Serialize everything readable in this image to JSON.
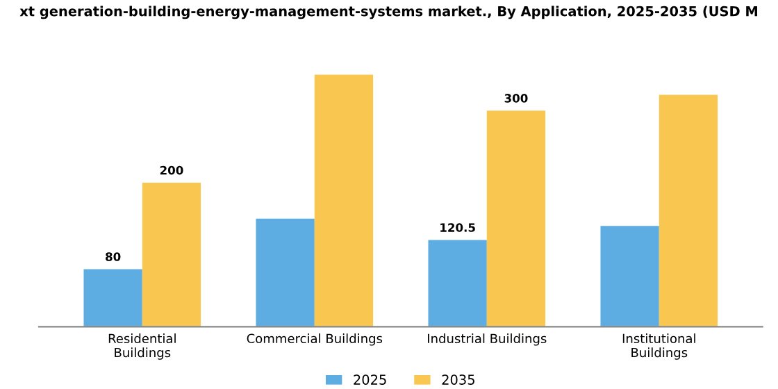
{
  "chart_data": {
    "type": "bar",
    "title": "xt generation-building-energy-management-systems market., By Application, 2025-2035 (USD M",
    "categories": [
      "Residential\nBuildings",
      "Commercial Buildings",
      "Industrial Buildings",
      "Institutional\nBuildings"
    ],
    "series": [
      {
        "name": "2025",
        "color": "#5dade2",
        "values": [
          80,
          150,
          120.5,
          140
        ],
        "value_labels": [
          "80",
          null,
          "120.5",
          null
        ]
      },
      {
        "name": "2035",
        "color": "#f9c74f",
        "values": [
          200,
          350,
          300,
          322
        ],
        "value_labels": [
          "200",
          null,
          "300",
          null
        ]
      }
    ],
    "legend": "bottom",
    "grid": false
  }
}
